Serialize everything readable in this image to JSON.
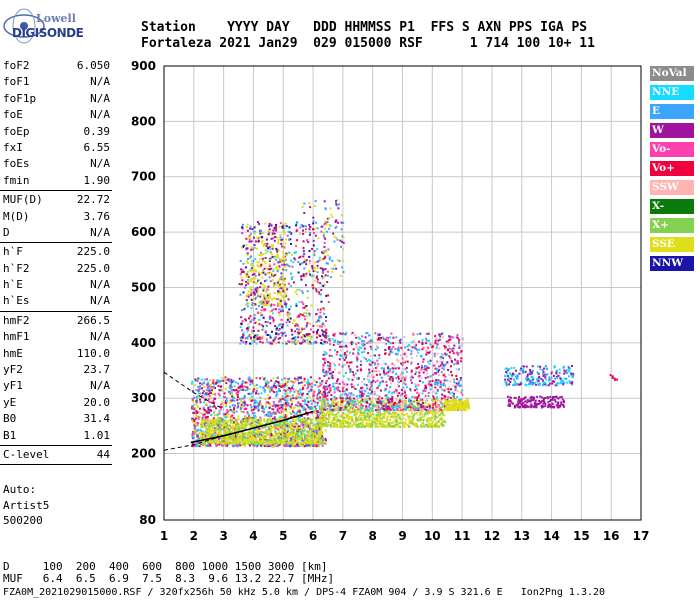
{
  "logo": {
    "line1": "Lowell",
    "line2": "DIGISONDE"
  },
  "header": {
    "row1": "Station    YYYY DAY   DDD HHMMSS P1  FFS S AXN PPS IGA PS",
    "row2": "Fortaleza 2021 Jan29  029 015000 RSF      1 714 100 10+ 11"
  },
  "params": [
    [
      {
        "name": "foF2",
        "value": "6.050"
      },
      {
        "name": "foF1",
        "value": "N/A"
      },
      {
        "name": "foF1p",
        "value": "N/A"
      },
      {
        "name": "foE",
        "value": "N/A"
      },
      {
        "name": "foEp",
        "value": "0.39"
      },
      {
        "name": "fxI",
        "value": "6.55"
      },
      {
        "name": "foEs",
        "value": "N/A"
      },
      {
        "name": "fmin",
        "value": "1.90"
      }
    ],
    [
      {
        "name": "MUF(D)",
        "value": "22.72"
      },
      {
        "name": "M(D)",
        "value": "3.76"
      },
      {
        "name": "D",
        "value": "N/A"
      }
    ],
    [
      {
        "name": "h`F",
        "value": "225.0"
      },
      {
        "name": "h`F2",
        "value": "225.0"
      },
      {
        "name": "h`E",
        "value": "N/A"
      },
      {
        "name": "h`Es",
        "value": "N/A"
      }
    ],
    [
      {
        "name": "hmF2",
        "value": "266.5"
      },
      {
        "name": "hmF1",
        "value": "N/A"
      },
      {
        "name": "hmE",
        "value": "110.0"
      },
      {
        "name": "yF2",
        "value": "23.7"
      },
      {
        "name": "yF1",
        "value": "N/A"
      },
      {
        "name": "yE",
        "value": "20.0"
      },
      {
        "name": "B0",
        "value": "31.4"
      },
      {
        "name": "B1",
        "value": "1.01"
      }
    ],
    [
      {
        "name": "C-level",
        "value": "44"
      }
    ]
  ],
  "auto": {
    "line1": "Auto:",
    "line2": "Artist5",
    "line3": "500200"
  },
  "legend": [
    {
      "label": "NoVal",
      "color": "#8c8c8c",
      "text_color": "#ffffff"
    },
    {
      "label": "NNE",
      "color": "#18dcff",
      "text_color": "#ffffff"
    },
    {
      "label": "E",
      "color": "#3aa4ff",
      "text_color": "#ffffff"
    },
    {
      "label": "W",
      "color": "#a0139e",
      "text_color": "#ffffff"
    },
    {
      "label": "Vo-",
      "color": "#ff40b0",
      "text_color": "#ffffff"
    },
    {
      "label": "Vo+",
      "color": "#f0003c",
      "text_color": "#ffffff"
    },
    {
      "label": "SSW",
      "color": "#ffb4b4",
      "text_color": "#ffffff"
    },
    {
      "label": "X-",
      "color": "#0a7a0a",
      "text_color": "#ffffff"
    },
    {
      "label": "X+",
      "color": "#84d050",
      "text_color": "#ffffff"
    },
    {
      "label": "SSE",
      "color": "#dede1a",
      "text_color": "#ffffff"
    },
    {
      "label": "NNW",
      "color": "#1a14a8",
      "text_color": "#ffffff"
    }
  ],
  "bottom": {
    "d_row": "D     100  200  400  600  800 1000 1500 3000 [km]",
    "muf_row": "MUF   6.4  6.5  6.9  7.5  8.3  9.6 13.2 22.7 [MHz]",
    "info_row": "FZA0M_2021029015000.RSF / 320fx256h 50 kHz 5.0 km / DPS-4 FZA0M 904 / 3.9 S 321.6 E   Ion2Png 1.3.20"
  },
  "chart_data": {
    "type": "scatter",
    "x_ticks": [
      1,
      2,
      3,
      4,
      5,
      6,
      7,
      8,
      9,
      10,
      11,
      12,
      13,
      14,
      15,
      16,
      17
    ],
    "y_ticks": [
      200,
      300,
      400,
      500,
      600,
      700,
      800,
      900
    ],
    "xlim": [
      1,
      17
    ],
    "ylim": [
      80,
      900
    ],
    "grid": true,
    "legend_placement": "right",
    "profile_line": {
      "color": "#000000",
      "points": [
        [
          1.9,
          220
        ],
        [
          3.0,
          232
        ],
        [
          4.0,
          246
        ],
        [
          5.0,
          260
        ],
        [
          6.0,
          276
        ]
      ]
    },
    "profile_dashed_upper": [
      [
        1.0,
        347
      ],
      [
        2.0,
        310
      ],
      [
        3.0,
        280
      ]
    ],
    "profile_dashed_lower": [
      [
        1.0,
        206
      ],
      [
        2.0,
        216
      ],
      [
        3.0,
        232
      ]
    ],
    "echo_clusters": [
      {
        "x": [
          1.9,
          6.4
        ],
        "y": [
          215,
          340
        ],
        "n": 1800,
        "colors": [
          "#3aa4ff",
          "#a0139e",
          "#ff40b0",
          "#18dcff",
          "#f0003c",
          "#dede1a"
        ]
      },
      {
        "x": [
          2.2,
          6.3
        ],
        "y": [
          220,
          265
        ],
        "n": 900,
        "colors": [
          "#dede1a",
          "#dede1a",
          "#84d050"
        ]
      },
      {
        "x": [
          6.2,
          10.4
        ],
        "y": [
          250,
          300
        ],
        "n": 900,
        "colors": [
          "#dede1a",
          "#dede1a",
          "#84d050"
        ]
      },
      {
        "x": [
          6.3,
          11.0
        ],
        "y": [
          280,
          420
        ],
        "n": 1200,
        "colors": [
          "#3aa4ff",
          "#a0139e",
          "#ff40b0",
          "#18dcff",
          "#f0003c",
          "#ffb4b4"
        ]
      },
      {
        "x": [
          10.4,
          11.2
        ],
        "y": [
          280,
          300
        ],
        "n": 200,
        "colors": [
          "#dede1a"
        ]
      },
      {
        "x": [
          3.5,
          6.5
        ],
        "y": [
          400,
          620
        ],
        "n": 700,
        "colors": [
          "#a0139e",
          "#ff40b0",
          "#3aa4ff",
          "#dede1a",
          "#18dcff",
          "#1a14a8",
          "#f0003c"
        ]
      },
      {
        "x": [
          3.7,
          5.1
        ],
        "y": [
          470,
          620
        ],
        "n": 260,
        "colors": [
          "#dede1a",
          "#dede1a",
          "#a0139e"
        ]
      },
      {
        "x": [
          5.6,
          7.0
        ],
        "y": [
          520,
          660
        ],
        "n": 120,
        "colors": [
          "#a0139e",
          "#3aa4ff",
          "#dede1a"
        ]
      },
      {
        "x": [
          12.4,
          14.7
        ],
        "y": [
          325,
          360
        ],
        "n": 220,
        "colors": [
          "#3aa4ff",
          "#a0139e",
          "#18dcff"
        ]
      },
      {
        "x": [
          12.5,
          14.4
        ],
        "y": [
          285,
          305
        ],
        "n": 160,
        "colors": [
          "#a0139e"
        ]
      },
      {
        "x": [
          15.8,
          16.2
        ],
        "y": [
          335,
          345
        ],
        "n": 6,
        "colors": [
          "#f0003c"
        ]
      }
    ]
  }
}
